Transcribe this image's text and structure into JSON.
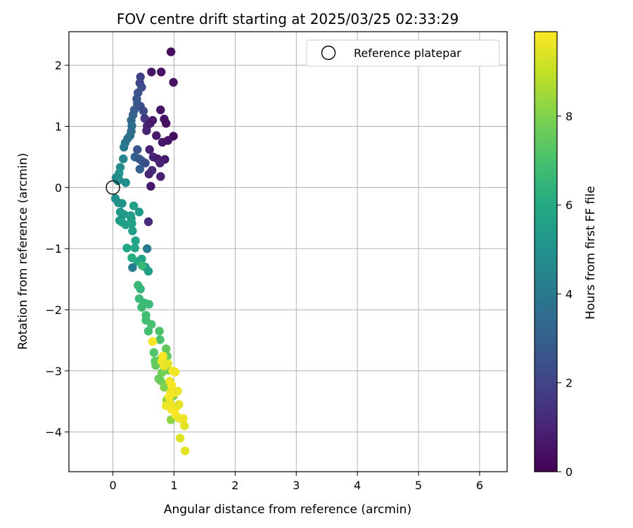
{
  "chart_data": {
    "type": "scatter",
    "title": "FOV centre drift starting at 2025/03/25 02:33:29",
    "xlabel": "Angular distance from reference (arcmin)",
    "ylabel": "Rotation from reference (arcmin)",
    "xlim": [
      -0.72,
      6.45
    ],
    "ylim": [
      -4.65,
      2.55
    ],
    "xticks": [
      0,
      1,
      2,
      3,
      4,
      5,
      6
    ],
    "yticks": [
      -4,
      -3,
      -2,
      -1,
      0,
      1,
      2
    ],
    "grid": true,
    "legend": {
      "placement": "top-right",
      "entries": [
        "Reference platepar"
      ]
    },
    "colorbar": {
      "label": "Hours from first FF file",
      "colormap": "viridis",
      "range": [
        0,
        9.9
      ],
      "ticks": [
        0,
        2,
        4,
        6,
        8
      ]
    },
    "reference_point": {
      "x": 0,
      "y": 0
    },
    "points": [
      [
        0.95,
        2.22,
        0.3
      ],
      [
        0.63,
        1.89,
        0.6
      ],
      [
        0.79,
        1.89,
        0.4
      ],
      [
        0.99,
        1.72,
        0.5
      ],
      [
        0.45,
        1.81,
        1.9
      ],
      [
        0.44,
        1.71,
        2.1
      ],
      [
        0.47,
        1.64,
        2.3
      ],
      [
        0.41,
        1.55,
        2.5
      ],
      [
        0.39,
        1.45,
        2.6
      ],
      [
        0.4,
        1.37,
        2.7
      ],
      [
        0.45,
        1.33,
        2.5
      ],
      [
        0.5,
        1.25,
        2.2
      ],
      [
        0.52,
        1.13,
        1.6
      ],
      [
        0.56,
        1.01,
        1.2
      ],
      [
        0.55,
        0.93,
        1.0
      ],
      [
        0.61,
        1.05,
        0.8
      ],
      [
        0.65,
        1.1,
        0.7
      ],
      [
        0.78,
        1.27,
        0.5
      ],
      [
        0.84,
        1.12,
        0.6
      ],
      [
        0.87,
        1.05,
        0.4
      ],
      [
        0.71,
        0.85,
        0.7
      ],
      [
        0.99,
        0.84,
        0.3
      ],
      [
        0.9,
        0.77,
        0.5
      ],
      [
        0.81,
        0.74,
        0.6
      ],
      [
        0.6,
        0.62,
        0.9
      ],
      [
        0.66,
        0.5,
        1.0
      ],
      [
        0.73,
        0.47,
        0.8
      ],
      [
        0.85,
        0.46,
        0.7
      ],
      [
        0.77,
        0.4,
        1.0
      ],
      [
        0.64,
        0.28,
        1.2
      ],
      [
        0.59,
        0.22,
        1.1
      ],
      [
        0.78,
        0.18,
        0.9
      ],
      [
        0.62,
        0.02,
        0.6
      ],
      [
        0.58,
        -0.56,
        1.3
      ],
      [
        0.35,
        1.27,
        2.8
      ],
      [
        0.33,
        1.19,
        3.1
      ],
      [
        0.3,
        1.1,
        3.3
      ],
      [
        0.31,
        1.01,
        3.6
      ],
      [
        0.3,
        0.92,
        3.4
      ],
      [
        0.28,
        0.85,
        3.6
      ],
      [
        0.24,
        0.8,
        3.7
      ],
      [
        0.2,
        0.73,
        3.9
      ],
      [
        0.18,
        0.66,
        4.1
      ],
      [
        0.4,
        0.62,
        2.6
      ],
      [
        0.36,
        0.5,
        3.0
      ],
      [
        0.43,
        0.47,
        2.8
      ],
      [
        0.47,
        0.44,
        2.7
      ],
      [
        0.53,
        0.4,
        2.4
      ],
      [
        0.44,
        0.3,
        3.0
      ],
      [
        0.17,
        0.47,
        4.5
      ],
      [
        0.12,
        0.33,
        4.8
      ],
      [
        0.1,
        0.23,
        5.0
      ],
      [
        0.05,
        0.16,
        4.7
      ],
      [
        0.1,
        0.13,
        4.6
      ],
      [
        0.21,
        0.08,
        4.9
      ],
      [
        0.08,
        0.11,
        4.8
      ],
      [
        0.04,
        -0.18,
        4.9
      ],
      [
        0.09,
        -0.25,
        5.0
      ],
      [
        0.15,
        -0.26,
        5.1
      ],
      [
        0.12,
        -0.4,
        5.3
      ],
      [
        0.18,
        -0.44,
        5.4
      ],
      [
        0.11,
        -0.54,
        5.2
      ],
      [
        0.15,
        -0.57,
        5.6
      ],
      [
        0.21,
        -0.61,
        5.5
      ],
      [
        0.3,
        -0.51,
        5.5
      ],
      [
        0.31,
        -0.59,
        5.7
      ],
      [
        0.34,
        -0.3,
        5.6
      ],
      [
        0.29,
        -0.46,
        5.5
      ],
      [
        0.32,
        -0.71,
        5.6
      ],
      [
        0.43,
        -0.4,
        5.3
      ],
      [
        0.37,
        -0.87,
        5.8
      ],
      [
        0.36,
        -0.99,
        5.9
      ],
      [
        0.23,
        -0.99,
        5.9
      ],
      [
        0.47,
        -1.17,
        5.8
      ],
      [
        0.31,
        -1.15,
        6.1
      ],
      [
        0.4,
        -1.21,
        6.0
      ],
      [
        0.56,
        -1.0,
        4.0
      ],
      [
        0.32,
        -1.31,
        4.1
      ],
      [
        0.53,
        -1.3,
        5.6
      ],
      [
        0.58,
        -1.37,
        5.6
      ],
      [
        0.48,
        -1.28,
        6.6
      ],
      [
        0.41,
        -1.6,
        6.6
      ],
      [
        0.45,
        -1.66,
        6.5
      ],
      [
        0.43,
        -1.82,
        6.7
      ],
      [
        0.52,
        -1.89,
        6.6
      ],
      [
        0.59,
        -1.91,
        6.7
      ],
      [
        0.47,
        -1.96,
        6.7
      ],
      [
        0.54,
        -2.09,
        6.9
      ],
      [
        0.54,
        -2.17,
        6.8
      ],
      [
        0.58,
        -2.35,
        6.9
      ],
      [
        0.63,
        -2.24,
        7.0
      ],
      [
        0.76,
        -2.35,
        7.1
      ],
      [
        0.77,
        -2.49,
        7.0
      ],
      [
        0.67,
        -2.7,
        7.2
      ],
      [
        0.69,
        -2.84,
        7.4
      ],
      [
        0.7,
        -2.91,
        7.5
      ],
      [
        0.77,
        -2.87,
        7.6
      ],
      [
        0.79,
        -2.8,
        7.4
      ],
      [
        0.87,
        -2.64,
        7.5
      ],
      [
        0.89,
        -2.76,
        7.6
      ],
      [
        0.91,
        -2.99,
        7.8
      ],
      [
        0.8,
        -3.03,
        7.8
      ],
      [
        0.78,
        -3.16,
        7.7
      ],
      [
        0.84,
        -3.27,
        8.0
      ],
      [
        0.91,
        -3.2,
        8.0
      ],
      [
        0.75,
        -3.13,
        7.6
      ],
      [
        0.88,
        -3.48,
        8.3
      ],
      [
        0.99,
        -3.41,
        8.2
      ],
      [
        0.95,
        -3.8,
        8.2
      ],
      [
        0.65,
        -2.52,
        9.8
      ],
      [
        0.8,
        -2.84,
        9.7
      ],
      [
        0.84,
        -2.92,
        9.6
      ],
      [
        0.9,
        -2.88,
        9.5
      ],
      [
        0.98,
        -3.0,
        9.8
      ],
      [
        1.02,
        -3.02,
        9.7
      ],
      [
        0.93,
        -3.17,
        9.6
      ],
      [
        0.96,
        -3.23,
        9.8
      ],
      [
        0.95,
        -3.34,
        9.7
      ],
      [
        1.02,
        -3.35,
        9.9
      ],
      [
        1.06,
        -3.33,
        9.6
      ],
      [
        0.92,
        -3.42,
        9.8
      ],
      [
        0.93,
        -3.53,
        9.7
      ],
      [
        0.87,
        -3.57,
        9.6
      ],
      [
        0.96,
        -3.63,
        9.8
      ],
      [
        1.04,
        -3.59,
        9.7
      ],
      [
        1.08,
        -3.55,
        9.5
      ],
      [
        1.03,
        -3.73,
        9.8
      ],
      [
        1.09,
        -3.78,
        9.6
      ],
      [
        1.15,
        -3.78,
        9.7
      ],
      [
        1.17,
        -3.9,
        9.5
      ],
      [
        1.1,
        -4.1,
        9.4
      ],
      [
        1.18,
        -4.31,
        9.5
      ],
      [
        0.82,
        -2.76,
        9.9
      ]
    ]
  }
}
